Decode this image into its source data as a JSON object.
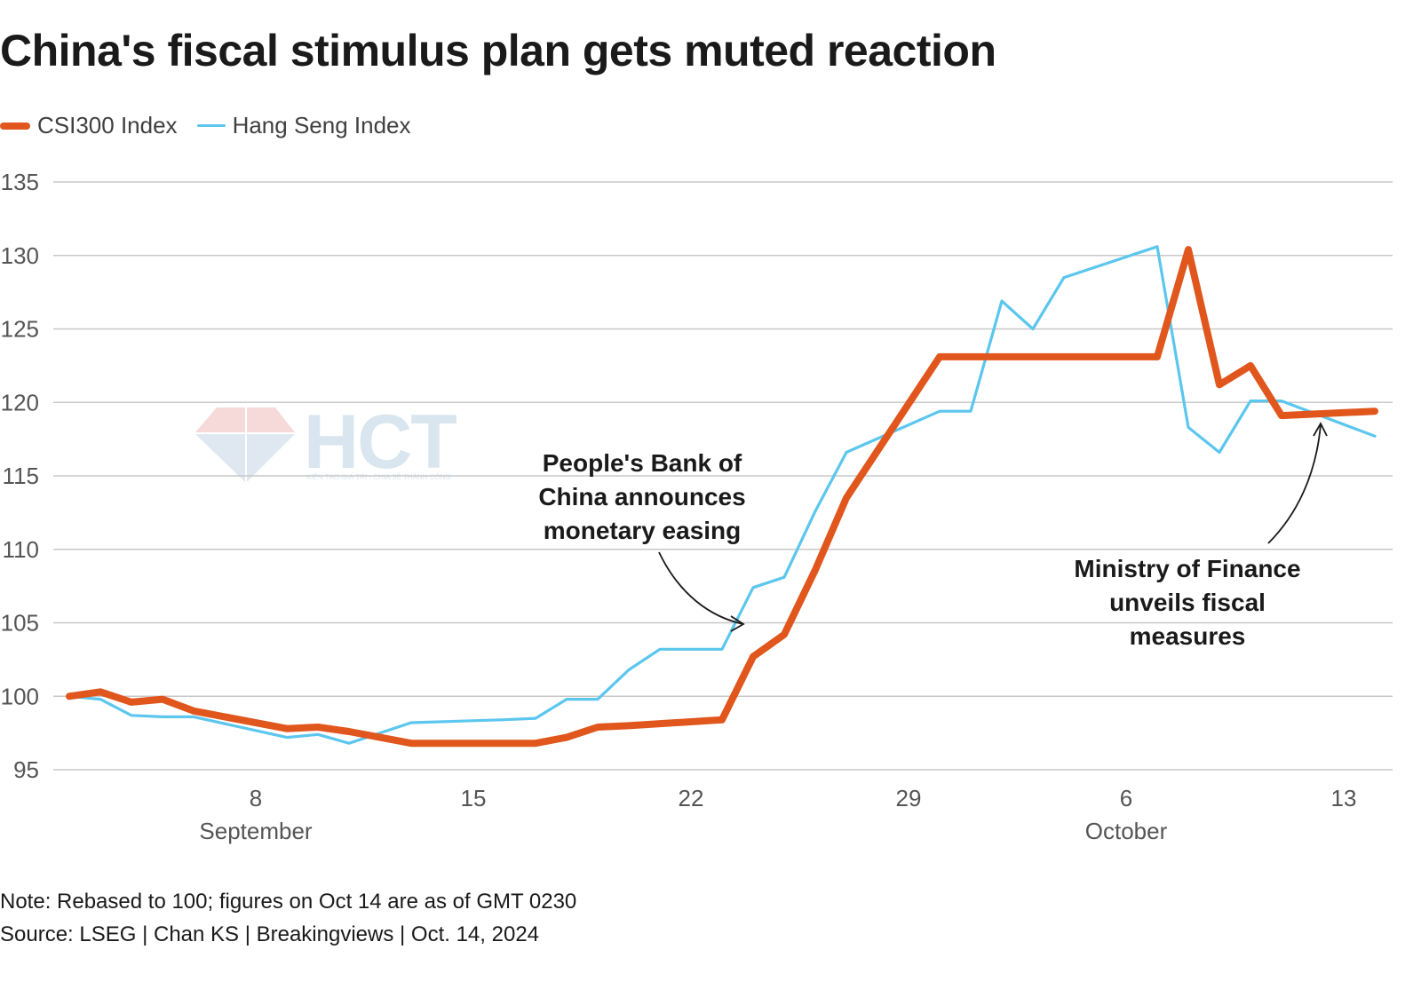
{
  "title": "China's fiscal stimulus plan gets muted reaction",
  "legend": [
    {
      "label": "CSI300 Index",
      "color": "#e0561c"
    },
    {
      "label": "Hang Seng Index",
      "color": "#5bc6ee"
    }
  ],
  "annotations": {
    "pboc": [
      "People's Bank of",
      "China announces",
      "monetary easing"
    ],
    "mof": [
      "Ministry of Finance",
      "unveils fiscal",
      "measures"
    ]
  },
  "watermark": {
    "text": "HCT",
    "tagline": "KIẾN TẠO GIÁ TRỊ - CHIA SẺ THÀNH CÔNG"
  },
  "footer": {
    "note": "Note: Rebased to 100; figures on Oct 14 are as of GMT 0230",
    "source": "Source: LSEG | Chan KS | Breakingviews | Oct. 14, 2024"
  },
  "chart_data": {
    "type": "line",
    "title": "China's fiscal stimulus plan gets muted reaction",
    "xlabel": "",
    "ylabel": "",
    "ylim": [
      95,
      135
    ],
    "yticks": [
      95,
      100,
      105,
      110,
      115,
      120,
      125,
      130,
      135
    ],
    "xlim": [
      "2024-09-02",
      "2024-10-14"
    ],
    "xticks": [
      {
        "date": "2024-09-08",
        "label": "8",
        "month": "September"
      },
      {
        "date": "2024-09-15",
        "label": "15",
        "month": ""
      },
      {
        "date": "2024-09-22",
        "label": "22",
        "month": ""
      },
      {
        "date": "2024-09-29",
        "label": "29",
        "month": ""
      },
      {
        "date": "2024-10-06",
        "label": "6",
        "month": "October"
      },
      {
        "date": "2024-10-13",
        "label": "13",
        "month": ""
      }
    ],
    "grid": true,
    "legend_position": "top-left",
    "series": [
      {
        "name": "CSI300 Index",
        "color": "#e0561c",
        "points": [
          [
            "2024-09-02",
            100.0
          ],
          [
            "2024-09-03",
            100.3
          ],
          [
            "2024-09-04",
            99.6
          ],
          [
            "2024-09-05",
            99.8
          ],
          [
            "2024-09-06",
            99.0
          ],
          [
            "2024-09-09",
            97.8
          ],
          [
            "2024-09-10",
            97.9
          ],
          [
            "2024-09-11",
            97.6
          ],
          [
            "2024-09-12",
            97.2
          ],
          [
            "2024-09-13",
            96.8
          ],
          [
            "2024-09-17",
            96.8
          ],
          [
            "2024-09-18",
            97.2
          ],
          [
            "2024-09-19",
            97.9
          ],
          [
            "2024-09-20",
            98.0
          ],
          [
            "2024-09-23",
            98.4
          ],
          [
            "2024-09-24",
            102.7
          ],
          [
            "2024-09-25",
            104.2
          ],
          [
            "2024-09-26",
            108.6
          ],
          [
            "2024-09-27",
            113.5
          ],
          [
            "2024-09-30",
            123.1
          ],
          [
            "2024-10-07",
            123.1
          ],
          [
            "2024-10-08",
            130.4
          ],
          [
            "2024-10-09",
            121.2
          ],
          [
            "2024-10-10",
            122.5
          ],
          [
            "2024-10-11",
            119.1
          ],
          [
            "2024-10-14",
            119.4
          ]
        ]
      },
      {
        "name": "Hang Seng Index",
        "color": "#5bc6ee",
        "points": [
          [
            "2024-09-02",
            100.0
          ],
          [
            "2024-09-03",
            99.8
          ],
          [
            "2024-09-04",
            98.7
          ],
          [
            "2024-09-05",
            98.6
          ],
          [
            "2024-09-06",
            98.6
          ],
          [
            "2024-09-09",
            97.2
          ],
          [
            "2024-09-10",
            97.4
          ],
          [
            "2024-09-11",
            96.8
          ],
          [
            "2024-09-12",
            97.5
          ],
          [
            "2024-09-13",
            98.2
          ],
          [
            "2024-09-16",
            98.4
          ],
          [
            "2024-09-17",
            98.5
          ],
          [
            "2024-09-18",
            99.8
          ],
          [
            "2024-09-19",
            99.8
          ],
          [
            "2024-09-20",
            101.8
          ],
          [
            "2024-09-21",
            103.2
          ],
          [
            "2024-09-23",
            103.2
          ],
          [
            "2024-09-24",
            107.4
          ],
          [
            "2024-09-25",
            108.1
          ],
          [
            "2024-09-26",
            112.6
          ],
          [
            "2024-09-27",
            116.6
          ],
          [
            "2024-09-30",
            119.4
          ],
          [
            "2024-10-01",
            119.4
          ],
          [
            "2024-10-02",
            126.9
          ],
          [
            "2024-10-03",
            125.0
          ],
          [
            "2024-10-04",
            128.5
          ],
          [
            "2024-10-07",
            130.6
          ],
          [
            "2024-10-08",
            118.3
          ],
          [
            "2024-10-09",
            116.6
          ],
          [
            "2024-10-10",
            120.1
          ],
          [
            "2024-10-11",
            120.1
          ],
          [
            "2024-10-14",
            117.7
          ]
        ]
      }
    ]
  }
}
